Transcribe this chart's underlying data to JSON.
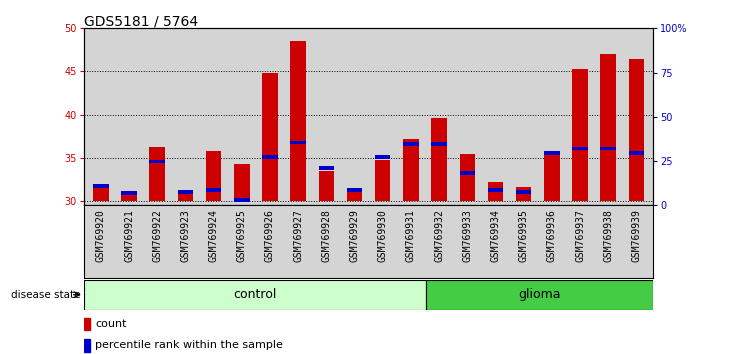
{
  "title": "GDS5181 / 5764",
  "samples": [
    "GSM769920",
    "GSM769921",
    "GSM769922",
    "GSM769923",
    "GSM769924",
    "GSM769925",
    "GSM769926",
    "GSM769927",
    "GSM769928",
    "GSM769929",
    "GSM769930",
    "GSM769931",
    "GSM769932",
    "GSM769933",
    "GSM769934",
    "GSM769935",
    "GSM769936",
    "GSM769937",
    "GSM769938",
    "GSM769939"
  ],
  "count_values": [
    32.0,
    31.2,
    36.3,
    31.3,
    35.8,
    34.3,
    44.8,
    48.5,
    33.5,
    31.3,
    34.8,
    37.2,
    39.6,
    35.5,
    32.2,
    31.6,
    35.8,
    45.3,
    47.0,
    46.4
  ],
  "percentile_values": [
    32.0,
    31.2,
    34.8,
    31.3,
    31.5,
    30.3,
    35.3,
    37.0,
    34.0,
    31.5,
    35.3,
    36.8,
    36.8,
    33.5,
    31.5,
    31.3,
    35.8,
    36.3,
    36.3,
    35.8
  ],
  "bar_bottom": 30,
  "ylim_left": [
    29.5,
    50
  ],
  "ylim_right": [
    0,
    100
  ],
  "yticks_left": [
    30,
    35,
    40,
    45,
    50
  ],
  "yticks_right": [
    0,
    25,
    50,
    75,
    100
  ],
  "ytick_labels_right": [
    "0",
    "25",
    "50",
    "75",
    "100%"
  ],
  "count_color": "#cc0000",
  "percentile_color": "#0000cc",
  "bar_width": 0.55,
  "control_count": 12,
  "glioma_count": 8,
  "control_label": "control",
  "glioma_label": "glioma",
  "disease_state_label": "disease state",
  "control_color_light": "#ccffcc",
  "glioma_color": "#44cc44",
  "legend_count_label": "count",
  "legend_percentile_label": "percentile rank within the sample",
  "ax_bg_color": "#d4d4d4",
  "grid_color": "#000000",
  "title_fontsize": 10,
  "tick_fontsize": 7,
  "label_fontsize": 9
}
